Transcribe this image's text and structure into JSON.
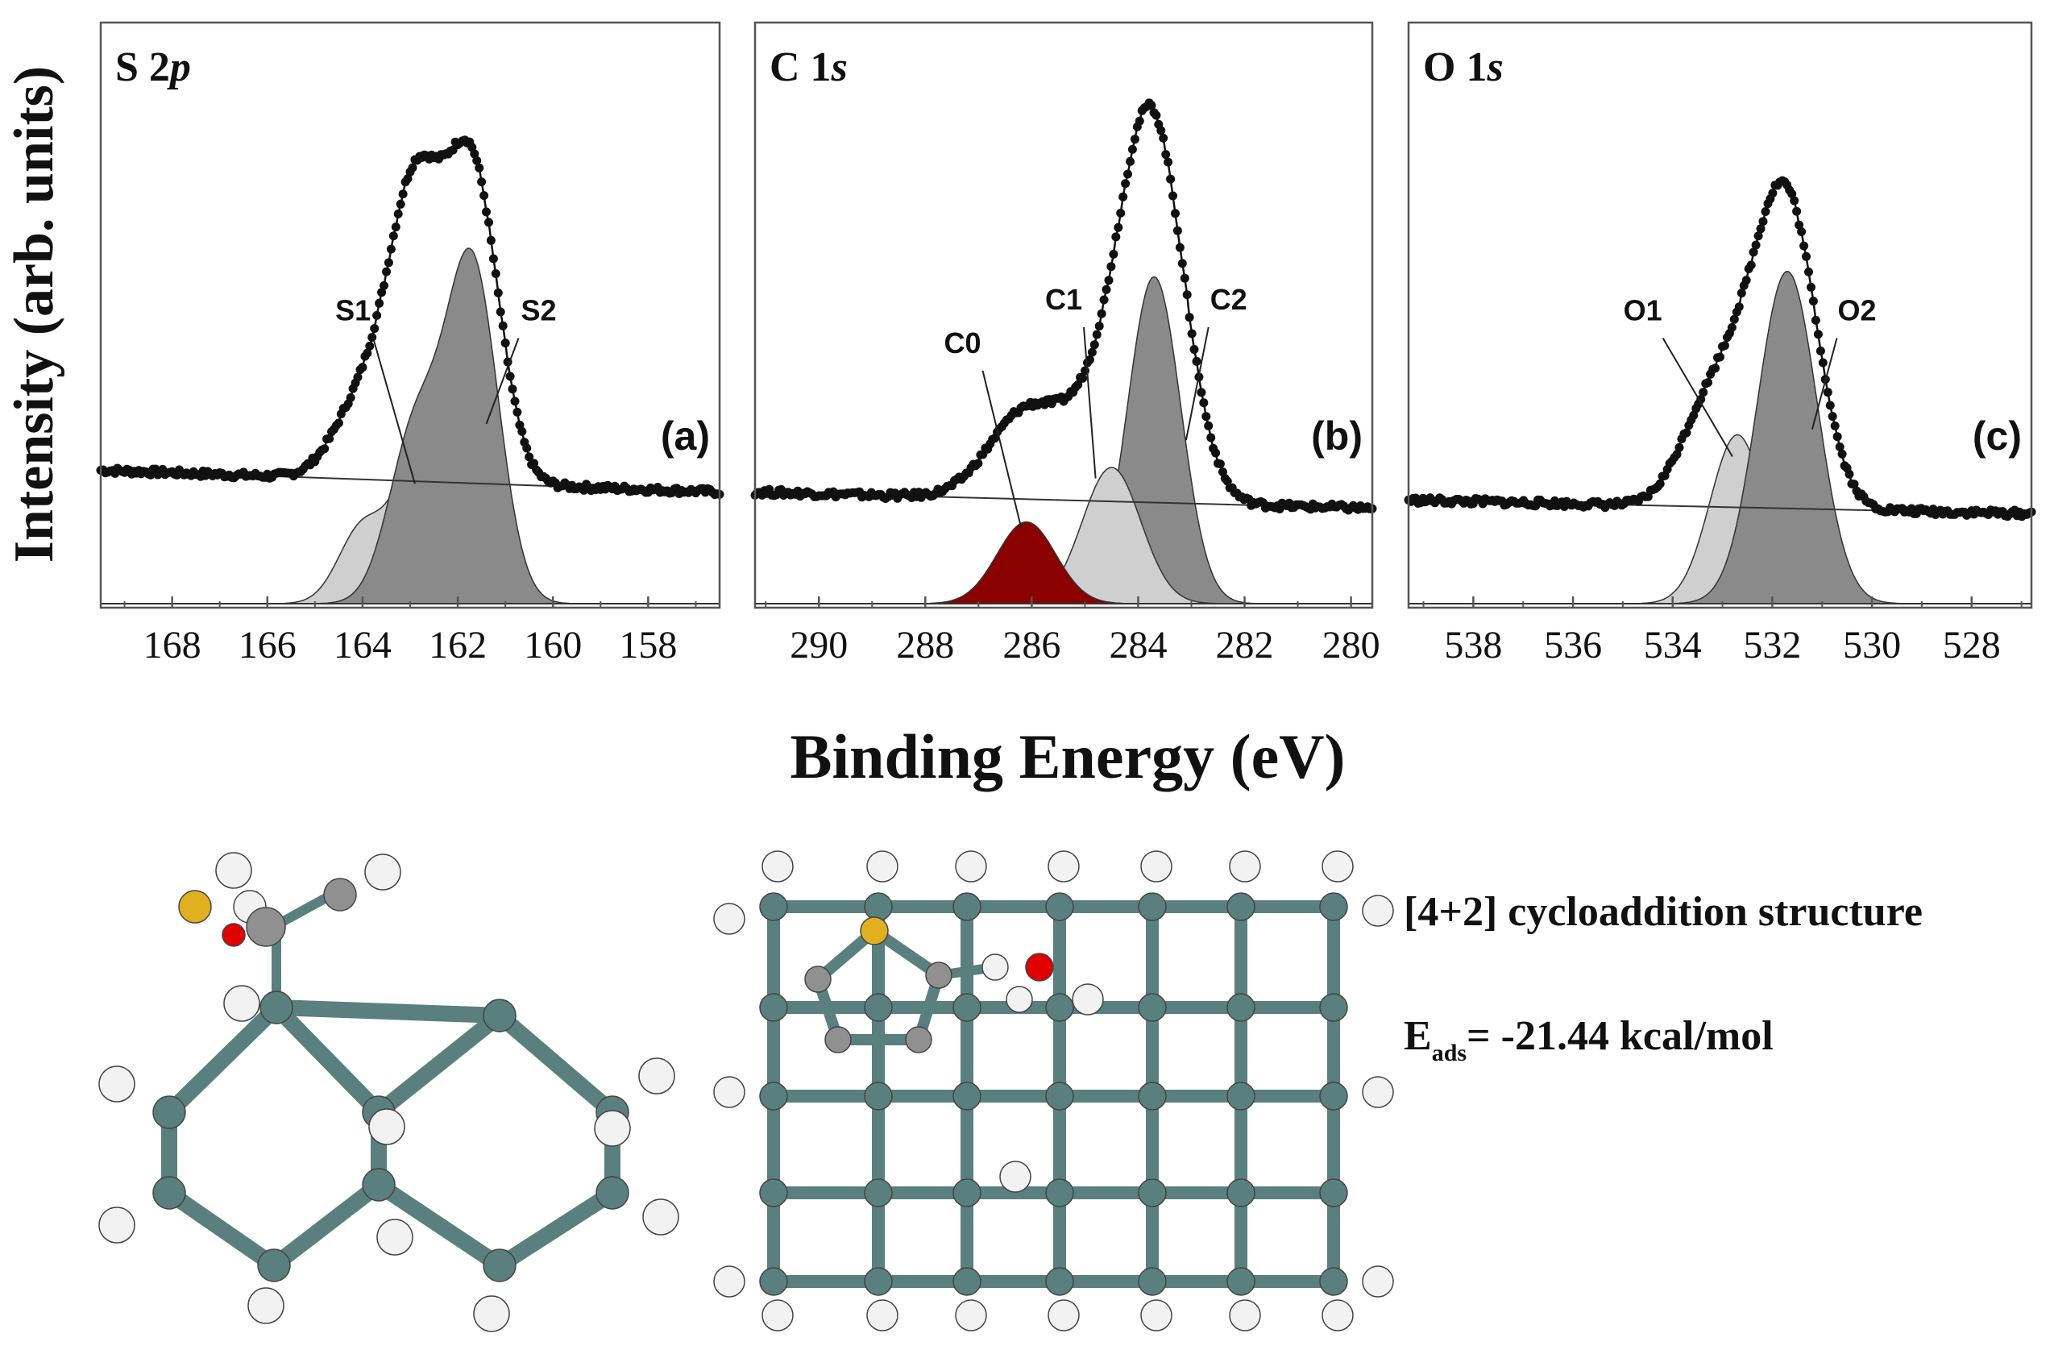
{
  "figure": {
    "ylabel": "Intensity (arb. units)",
    "xlabel": "Binding Energy (eV)",
    "structure_title": "[4+2] cycloaddition structure",
    "energy_prefix": "E",
    "energy_sub": "ads",
    "energy_value": "= -21.44 kcal/mol"
  },
  "colors": {
    "data_points": "#111111",
    "light_component": "#cfcfcf",
    "dark_component": "#8a8a8a",
    "c0_component": "#8b0000",
    "si_atom": "#5a7f7f",
    "h_atom": "#f2f2f2",
    "s_atom": "#e0b020",
    "o_atom": "#e00000",
    "c_atom": "#909090"
  },
  "chart_data": [
    {
      "type": "scatter",
      "panel": "(a)",
      "title_main": "S 2",
      "title_italic": "p",
      "xlabel": "",
      "ylabel": "Intensity (arb. units)",
      "xlim": [
        169.5,
        156.5
      ],
      "xticks": [
        "168",
        "166",
        "164",
        "162",
        "160",
        "158"
      ],
      "xtick_values": [
        168,
        166,
        164,
        162,
        160,
        158
      ],
      "ylim": [
        0,
        1.0
      ],
      "baseline": [
        [
          169.5,
          0.245
        ],
        [
          156.5,
          0.205
        ]
      ],
      "components": [
        {
          "name": "S1",
          "shade": "light",
          "peaks": [
            {
              "center": 162.8,
              "amp": 0.27,
              "width": 0.5
            },
            {
              "center": 164.0,
              "amp": 0.14,
              "width": 0.5
            }
          ],
          "label_at": [
            164.2,
            0.52
          ],
          "line_to": [
            162.9,
            0.22
          ]
        },
        {
          "name": "S2",
          "shade": "dark",
          "peaks": [
            {
              "center": 161.7,
              "amp": 0.62,
              "width": 0.55
            },
            {
              "center": 162.9,
              "amp": 0.31,
              "width": 0.55
            }
          ],
          "label_at": [
            160.3,
            0.52
          ],
          "line_to": [
            161.4,
            0.33
          ]
        }
      ],
      "envelope": {
        "bg_at_left": 0.245,
        "bg_at_right": 0.205,
        "peaks": [
          {
            "center": 161.7,
            "amp": 0.57,
            "width": 0.55
          },
          {
            "center": 162.9,
            "amp": 0.51,
            "width": 0.55
          },
          {
            "center": 164.0,
            "amp": 0.14,
            "width": 0.6
          }
        ]
      }
    },
    {
      "type": "scatter",
      "panel": "(b)",
      "title_main": "C 1",
      "title_italic": "s",
      "xlabel": "",
      "ylabel": "",
      "xlim": [
        291.2,
        279.6
      ],
      "xticks": [
        "290",
        "288",
        "286",
        "284",
        "282",
        "280"
      ],
      "xtick_values": [
        290,
        288,
        286,
        284,
        282,
        280
      ],
      "ylim": [
        0,
        1.0
      ],
      "baseline": [
        [
          291.2,
          0.205
        ],
        [
          279.6,
          0.175
        ]
      ],
      "components": [
        {
          "name": "C0",
          "shade": "c0",
          "peaks": [
            {
              "center": 286.1,
              "amp": 0.15,
              "width": 0.55
            }
          ],
          "label_at": [
            287.3,
            0.46
          ],
          "line_to": [
            286.2,
            0.14
          ]
        },
        {
          "name": "C1",
          "shade": "light",
          "peaks": [
            {
              "center": 284.5,
              "amp": 0.25,
              "width": 0.55
            }
          ],
          "label_at": [
            285.4,
            0.54
          ],
          "line_to": [
            284.8,
            0.23
          ]
        },
        {
          "name": "C2",
          "shade": "dark",
          "peaks": [
            {
              "center": 283.7,
              "amp": 0.6,
              "width": 0.5
            }
          ],
          "label_at": [
            282.3,
            0.54
          ],
          "line_to": [
            283.1,
            0.3
          ]
        }
      ],
      "envelope": {
        "bg_at_left": 0.205,
        "bg_at_right": 0.175,
        "peaks": [
          {
            "center": 283.75,
            "amp": 0.7,
            "width": 0.6
          },
          {
            "center": 286.1,
            "amp": 0.16,
            "width": 0.7
          },
          {
            "center": 284.8,
            "amp": 0.12,
            "width": 0.6
          }
        ]
      }
    },
    {
      "type": "scatter",
      "panel": "(c)",
      "title_main": "O 1",
      "title_italic": "s",
      "xlabel": "",
      "ylabel": "",
      "xlim": [
        539.3,
        526.8
      ],
      "xticks": [
        "538",
        "536",
        "534",
        "532",
        "530",
        "528"
      ],
      "xtick_values": [
        538,
        536,
        534,
        532,
        530,
        528
      ],
      "ylim": [
        0,
        1.0
      ],
      "baseline": [
        [
          539.3,
          0.19
        ],
        [
          526.8,
          0.165
        ]
      ],
      "components": [
        {
          "name": "O1",
          "shade": "light",
          "peaks": [
            {
              "center": 532.7,
              "amp": 0.31,
              "width": 0.55
            }
          ],
          "label_at": [
            534.6,
            0.52
          ],
          "line_to": [
            532.8,
            0.27
          ]
        },
        {
          "name": "O2",
          "shade": "dark",
          "peaks": [
            {
              "center": 531.7,
              "amp": 0.61,
              "width": 0.6
            }
          ],
          "label_at": [
            530.3,
            0.52
          ],
          "line_to": [
            531.2,
            0.32
          ]
        }
      ],
      "envelope": {
        "bg_at_left": 0.19,
        "bg_at_right": 0.165,
        "peaks": [
          {
            "center": 531.7,
            "amp": 0.54,
            "width": 0.6
          },
          {
            "center": 532.8,
            "amp": 0.22,
            "width": 0.65
          },
          {
            "center": 533.6,
            "amp": 0.06,
            "width": 0.5
          }
        ]
      }
    }
  ]
}
